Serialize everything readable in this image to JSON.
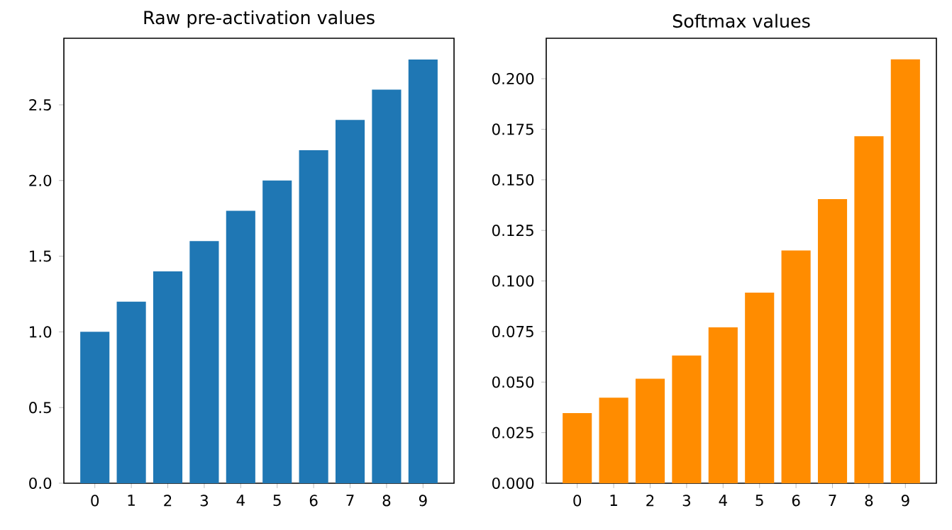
{
  "chart_data": [
    {
      "type": "bar",
      "title": "Raw pre-activation values",
      "categories": [
        "0",
        "1",
        "2",
        "3",
        "4",
        "5",
        "6",
        "7",
        "8",
        "9"
      ],
      "values": [
        1.0,
        1.2,
        1.4,
        1.6,
        1.8,
        2.0,
        2.2,
        2.4,
        2.6,
        2.8
      ],
      "color": "#1f77b4",
      "ylim": [
        0,
        2.94
      ],
      "yticks": [
        {
          "value": 0,
          "label": "0.0"
        },
        {
          "value": 0.5,
          "label": "0.5"
        },
        {
          "value": 1,
          "label": "1.0"
        },
        {
          "value": 1.5,
          "label": "1.5"
        },
        {
          "value": 2,
          "label": "2.0"
        },
        {
          "value": 2.5,
          "label": "2.5"
        }
      ]
    },
    {
      "type": "bar",
      "title": "Softmax values",
      "categories": [
        "0",
        "1",
        "2",
        "3",
        "4",
        "5",
        "6",
        "7",
        "8",
        "9"
      ],
      "values": [
        0.0347,
        0.0423,
        0.0517,
        0.0631,
        0.0771,
        0.0942,
        0.1151,
        0.1405,
        0.1716,
        0.2096
      ],
      "color": "#ff8c00",
      "ylim": [
        0,
        0.22
      ],
      "yticks": [
        {
          "value": 0,
          "label": "0.000"
        },
        {
          "value": 0.025,
          "label": "0.025"
        },
        {
          "value": 0.05,
          "label": "0.050"
        },
        {
          "value": 0.075,
          "label": "0.075"
        },
        {
          "value": 0.1,
          "label": "0.100"
        },
        {
          "value": 0.125,
          "label": "0.125"
        },
        {
          "value": 0.15,
          "label": "0.150"
        },
        {
          "value": 0.175,
          "label": "0.175"
        },
        {
          "value": 0.2,
          "label": "0.200"
        }
      ]
    }
  ]
}
